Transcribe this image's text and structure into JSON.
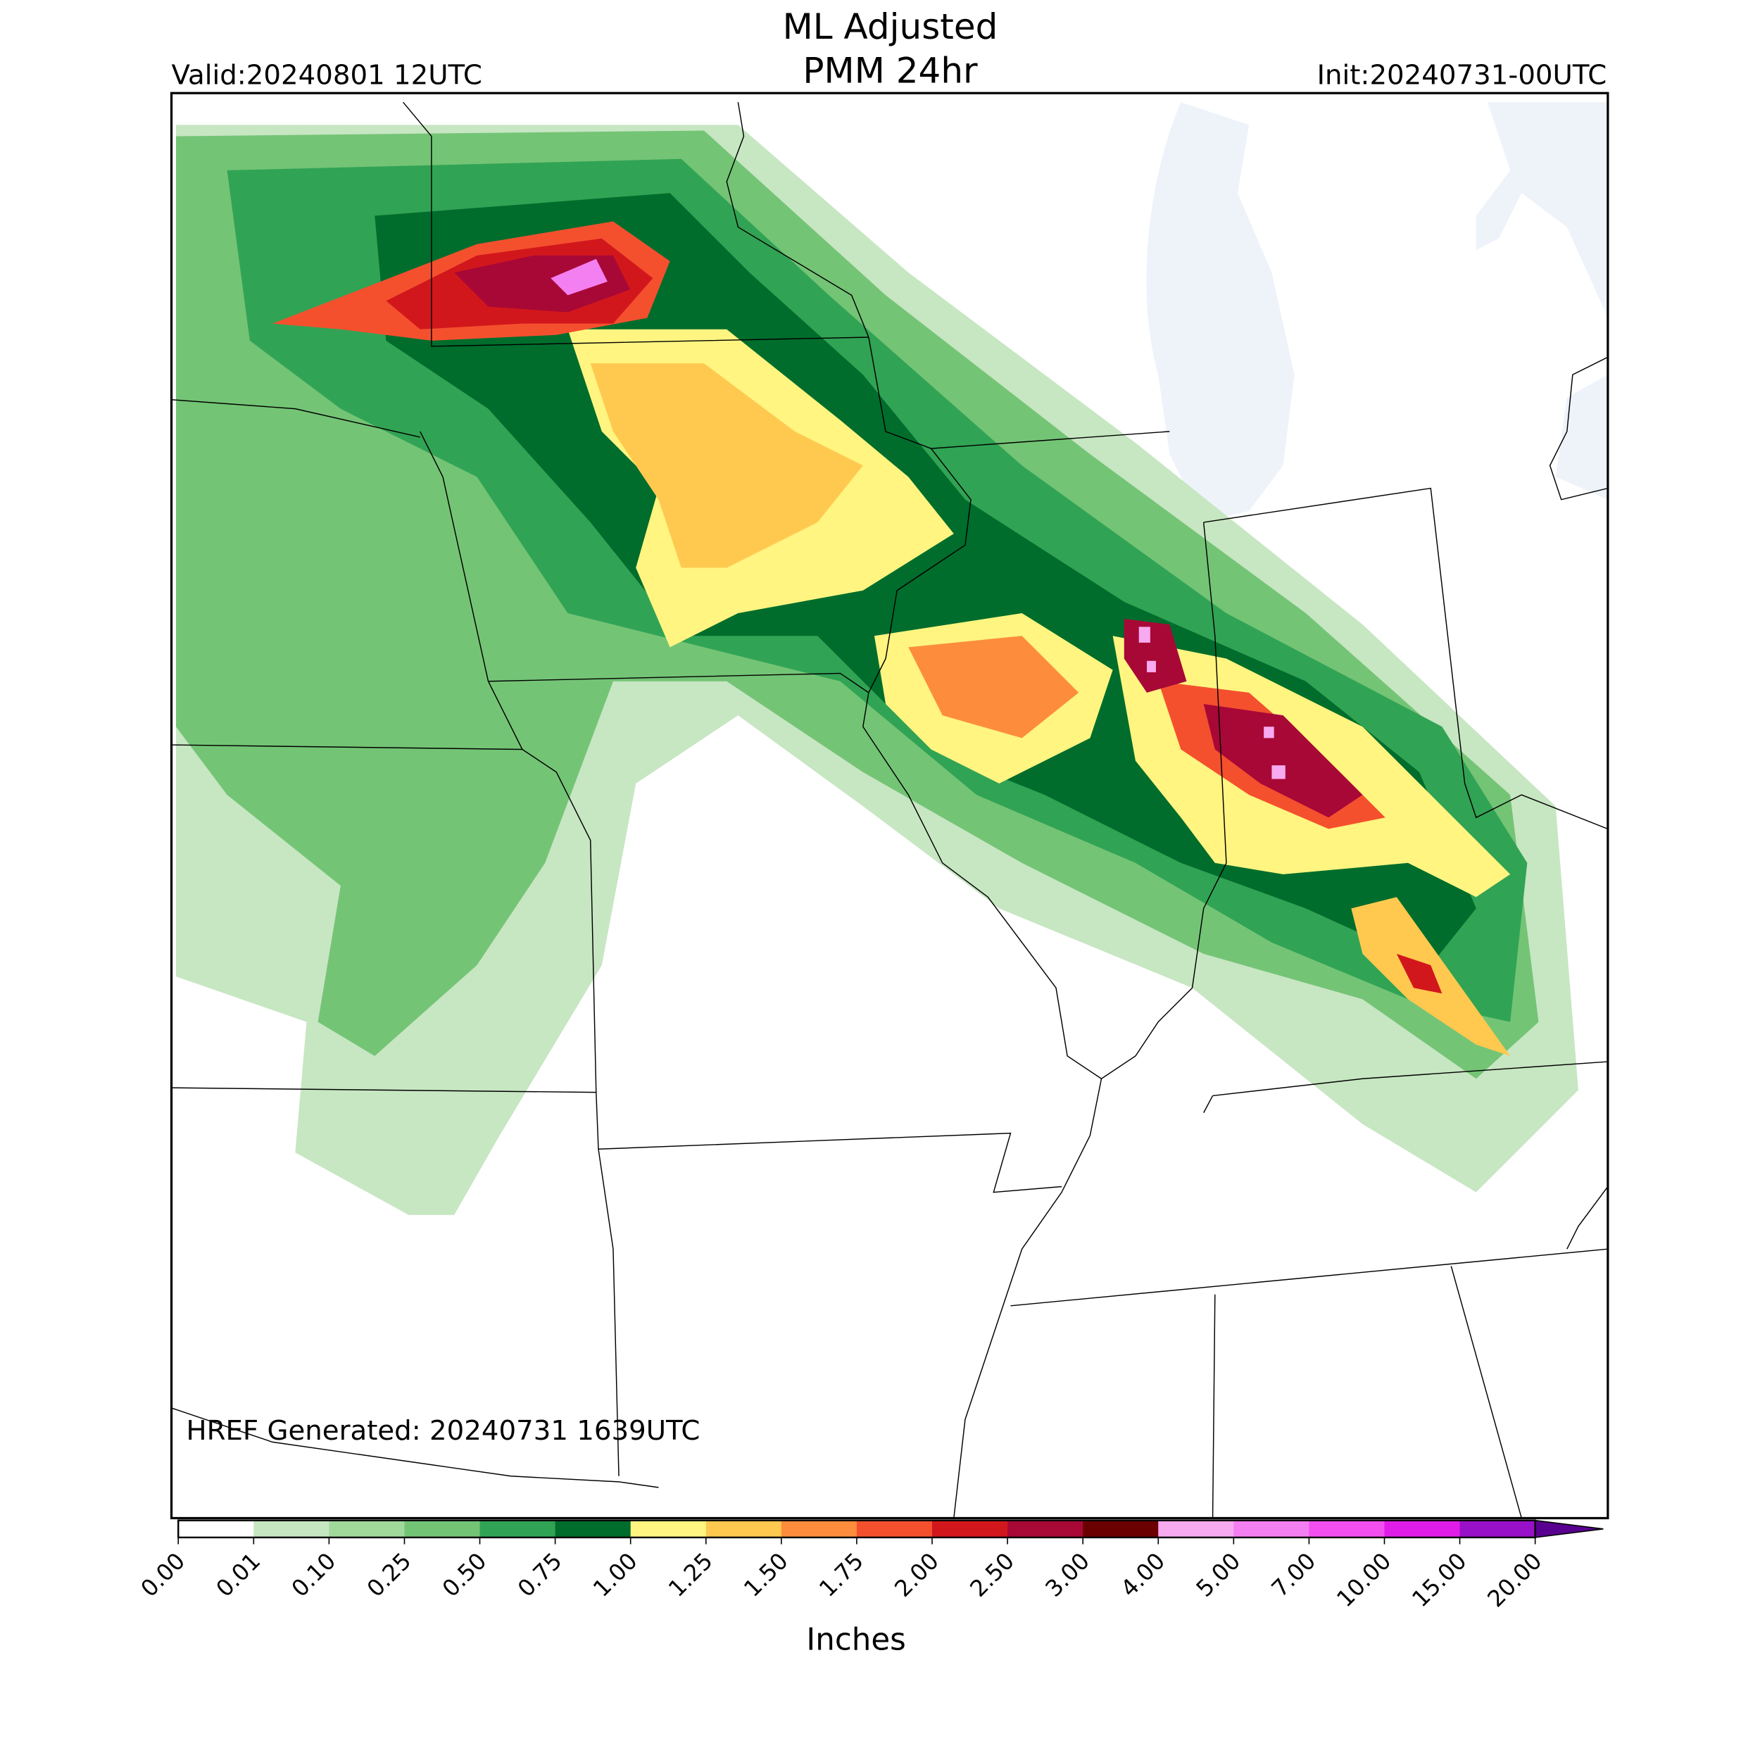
{
  "header": {
    "title_line1": "ML Adjusted",
    "title_line2": "PMM 24hr",
    "valid": "Valid:20240801 12UTC",
    "init": "Init:20240731-00UTC"
  },
  "map": {
    "footer": "HREF Generated: 20240731 1639UTC"
  },
  "colorbar": {
    "ticks": [
      "0.00",
      "0.01",
      "0.10",
      "0.25",
      "0.50",
      "0.75",
      "1.00",
      "1.25",
      "1.50",
      "1.75",
      "2.00",
      "2.50",
      "3.00",
      "4.00",
      "5.00",
      "7.00",
      "10.00",
      "15.00",
      "20.00"
    ],
    "colors": [
      "#ffffff",
      "#c7e6c2",
      "#a1d99b",
      "#74c476",
      "#31a354",
      "#006d2c",
      "#fff580",
      "#ffc94f",
      "#fd8d3c",
      "#f4502e",
      "#d2171c",
      "#a80836",
      "#6b0000",
      "#f7aaf0",
      "#f47ff0",
      "#f24ef0",
      "#e01de8",
      "#9810c8"
    ],
    "extend_color": "#5a0090",
    "label": "Inches"
  }
}
